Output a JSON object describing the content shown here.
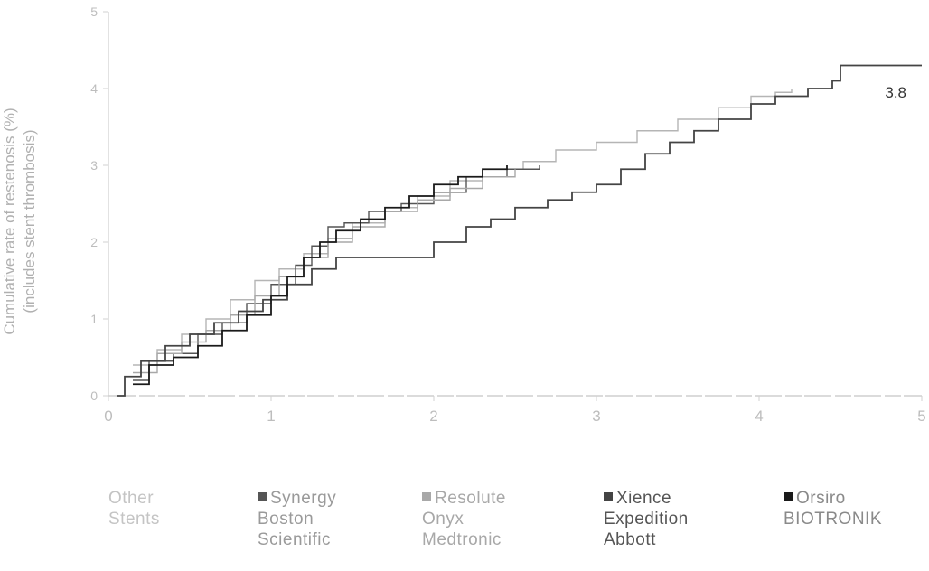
{
  "chart_data": {
    "type": "line",
    "xlabel": "",
    "ylabel_lines": [
      "Cumulative rate of restenosis (%)",
      "(includes stent thrombosis)"
    ],
    "xlim": [
      0,
      5
    ],
    "ylim": [
      0,
      5
    ],
    "x_ticks": [
      "0",
      "1",
      "2",
      "3",
      "4",
      "5"
    ],
    "y_ticks": [
      "0",
      "1",
      "2",
      "3",
      "4",
      "5"
    ],
    "annotation": "3.8",
    "series": [
      {
        "name": "Other Stents",
        "label_lines": [
          "Other",
          "Stents"
        ],
        "color": "#b5b5b5",
        "points": [
          [
            0.15,
            0.4
          ],
          [
            0.3,
            0.6
          ],
          [
            0.45,
            0.8
          ],
          [
            0.6,
            1.0
          ],
          [
            0.75,
            1.25
          ],
          [
            0.9,
            1.5
          ],
          [
            1.05,
            1.65
          ],
          [
            1.2,
            1.85
          ],
          [
            1.35,
            2.05
          ],
          [
            1.5,
            2.25
          ],
          [
            1.7,
            2.45
          ],
          [
            1.9,
            2.6
          ],
          [
            2.1,
            2.8
          ],
          [
            2.3,
            2.95
          ],
          [
            2.55,
            3.05
          ],
          [
            2.75,
            3.2
          ],
          [
            3.0,
            3.3
          ],
          [
            3.25,
            3.45
          ],
          [
            3.5,
            3.6
          ],
          [
            3.75,
            3.75
          ],
          [
            3.95,
            3.9
          ],
          [
            4.1,
            3.95
          ],
          [
            4.2,
            4.0
          ]
        ]
      },
      {
        "name": "Synergy Boston Scientific",
        "label_lines": [
          "Synergy",
          "Boston",
          "Scientific"
        ],
        "color": "#555555",
        "points": [
          [
            0.15,
            0.2
          ],
          [
            0.25,
            0.45
          ],
          [
            0.4,
            0.55
          ],
          [
            0.55,
            0.8
          ],
          [
            0.7,
            0.95
          ],
          [
            0.85,
            1.2
          ],
          [
            1.0,
            1.45
          ],
          [
            1.15,
            1.7
          ],
          [
            1.25,
            1.95
          ],
          [
            1.35,
            2.2
          ],
          [
            1.45,
            2.25
          ],
          [
            1.6,
            2.4
          ],
          [
            1.8,
            2.5
          ],
          [
            2.0,
            2.65
          ],
          [
            2.2,
            2.85
          ],
          [
            2.45,
            2.95
          ],
          [
            2.65,
            3.0
          ]
        ]
      },
      {
        "name": "Resolute Onyx Medtronic",
        "label_lines": [
          "Resolute",
          "Onyx",
          "Medtronic"
        ],
        "color": "#a8a8a8",
        "points": [
          [
            0.15,
            0.3
          ],
          [
            0.3,
            0.55
          ],
          [
            0.45,
            0.7
          ],
          [
            0.6,
            0.85
          ],
          [
            0.75,
            1.05
          ],
          [
            0.9,
            1.3
          ],
          [
            1.05,
            1.55
          ],
          [
            1.2,
            1.8
          ],
          [
            1.35,
            2.0
          ],
          [
            1.5,
            2.2
          ],
          [
            1.7,
            2.4
          ],
          [
            1.9,
            2.55
          ],
          [
            2.1,
            2.7
          ],
          [
            2.3,
            2.85
          ],
          [
            2.5,
            2.95
          ]
        ]
      },
      {
        "name": "Xience Expedition Abbott",
        "label_lines": [
          "Xience",
          "Expedition",
          "Abbott"
        ],
        "color": "#444444",
        "points": [
          [
            0.05,
            0.0
          ],
          [
            0.1,
            0.25
          ],
          [
            0.2,
            0.45
          ],
          [
            0.35,
            0.65
          ],
          [
            0.5,
            0.8
          ],
          [
            0.65,
            0.95
          ],
          [
            0.8,
            1.1
          ],
          [
            0.95,
            1.25
          ],
          [
            1.1,
            1.45
          ],
          [
            1.25,
            1.65
          ],
          [
            1.4,
            1.8
          ],
          [
            1.6,
            1.8
          ],
          [
            1.85,
            1.8
          ],
          [
            2.0,
            2.0
          ],
          [
            2.2,
            2.2
          ],
          [
            2.35,
            2.3
          ],
          [
            2.5,
            2.45
          ],
          [
            2.7,
            2.55
          ],
          [
            2.85,
            2.65
          ],
          [
            3.0,
            2.75
          ],
          [
            3.15,
            2.95
          ],
          [
            3.3,
            3.15
          ],
          [
            3.45,
            3.3
          ],
          [
            3.6,
            3.45
          ],
          [
            3.75,
            3.6
          ],
          [
            3.95,
            3.8
          ],
          [
            4.1,
            3.9
          ],
          [
            4.3,
            4.0
          ],
          [
            4.45,
            4.1
          ],
          [
            4.5,
            4.3
          ],
          [
            5.0,
            4.3
          ]
        ]
      },
      {
        "name": "Orsiro BIOTRONIK",
        "label_lines": [
          "Orsiro",
          "BIOTRONIK"
        ],
        "color": "#1a1a1a",
        "points": [
          [
            0.15,
            0.15
          ],
          [
            0.25,
            0.4
          ],
          [
            0.4,
            0.5
          ],
          [
            0.55,
            0.65
          ],
          [
            0.7,
            0.85
          ],
          [
            0.85,
            1.05
          ],
          [
            1.0,
            1.3
          ],
          [
            1.1,
            1.55
          ],
          [
            1.2,
            1.8
          ],
          [
            1.3,
            2.0
          ],
          [
            1.4,
            2.15
          ],
          [
            1.55,
            2.3
          ],
          [
            1.7,
            2.45
          ],
          [
            1.85,
            2.6
          ],
          [
            2.0,
            2.75
          ],
          [
            2.15,
            2.85
          ],
          [
            2.3,
            2.95
          ],
          [
            2.45,
            3.0
          ]
        ]
      }
    ]
  }
}
